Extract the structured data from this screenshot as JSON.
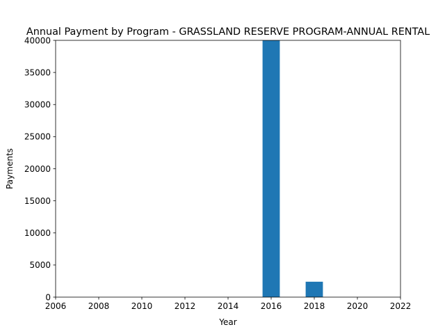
{
  "chart_data": {
    "type": "bar",
    "title": "Annual Payment by Program - GRASSLAND RESERVE PROGRAM-ANNUAL RENTAL",
    "xlabel": "Year",
    "ylabel": "Payments",
    "xlim": [
      2006,
      2022
    ],
    "ylim": [
      0,
      40000
    ],
    "x_ticks": [
      "2006",
      "2008",
      "2010",
      "2012",
      "2014",
      "2016",
      "2018",
      "2020",
      "2022"
    ],
    "y_ticks": [
      "0",
      "5000",
      "10000",
      "15000",
      "20000",
      "25000",
      "30000",
      "35000",
      "40000"
    ],
    "bars": [
      {
        "x": 2016,
        "value": 40000
      },
      {
        "x": 2018,
        "value": 2400
      }
    ],
    "bar_width_years": 0.8,
    "bar_color": "#1f77b4",
    "grid": false,
    "legend": "none"
  }
}
